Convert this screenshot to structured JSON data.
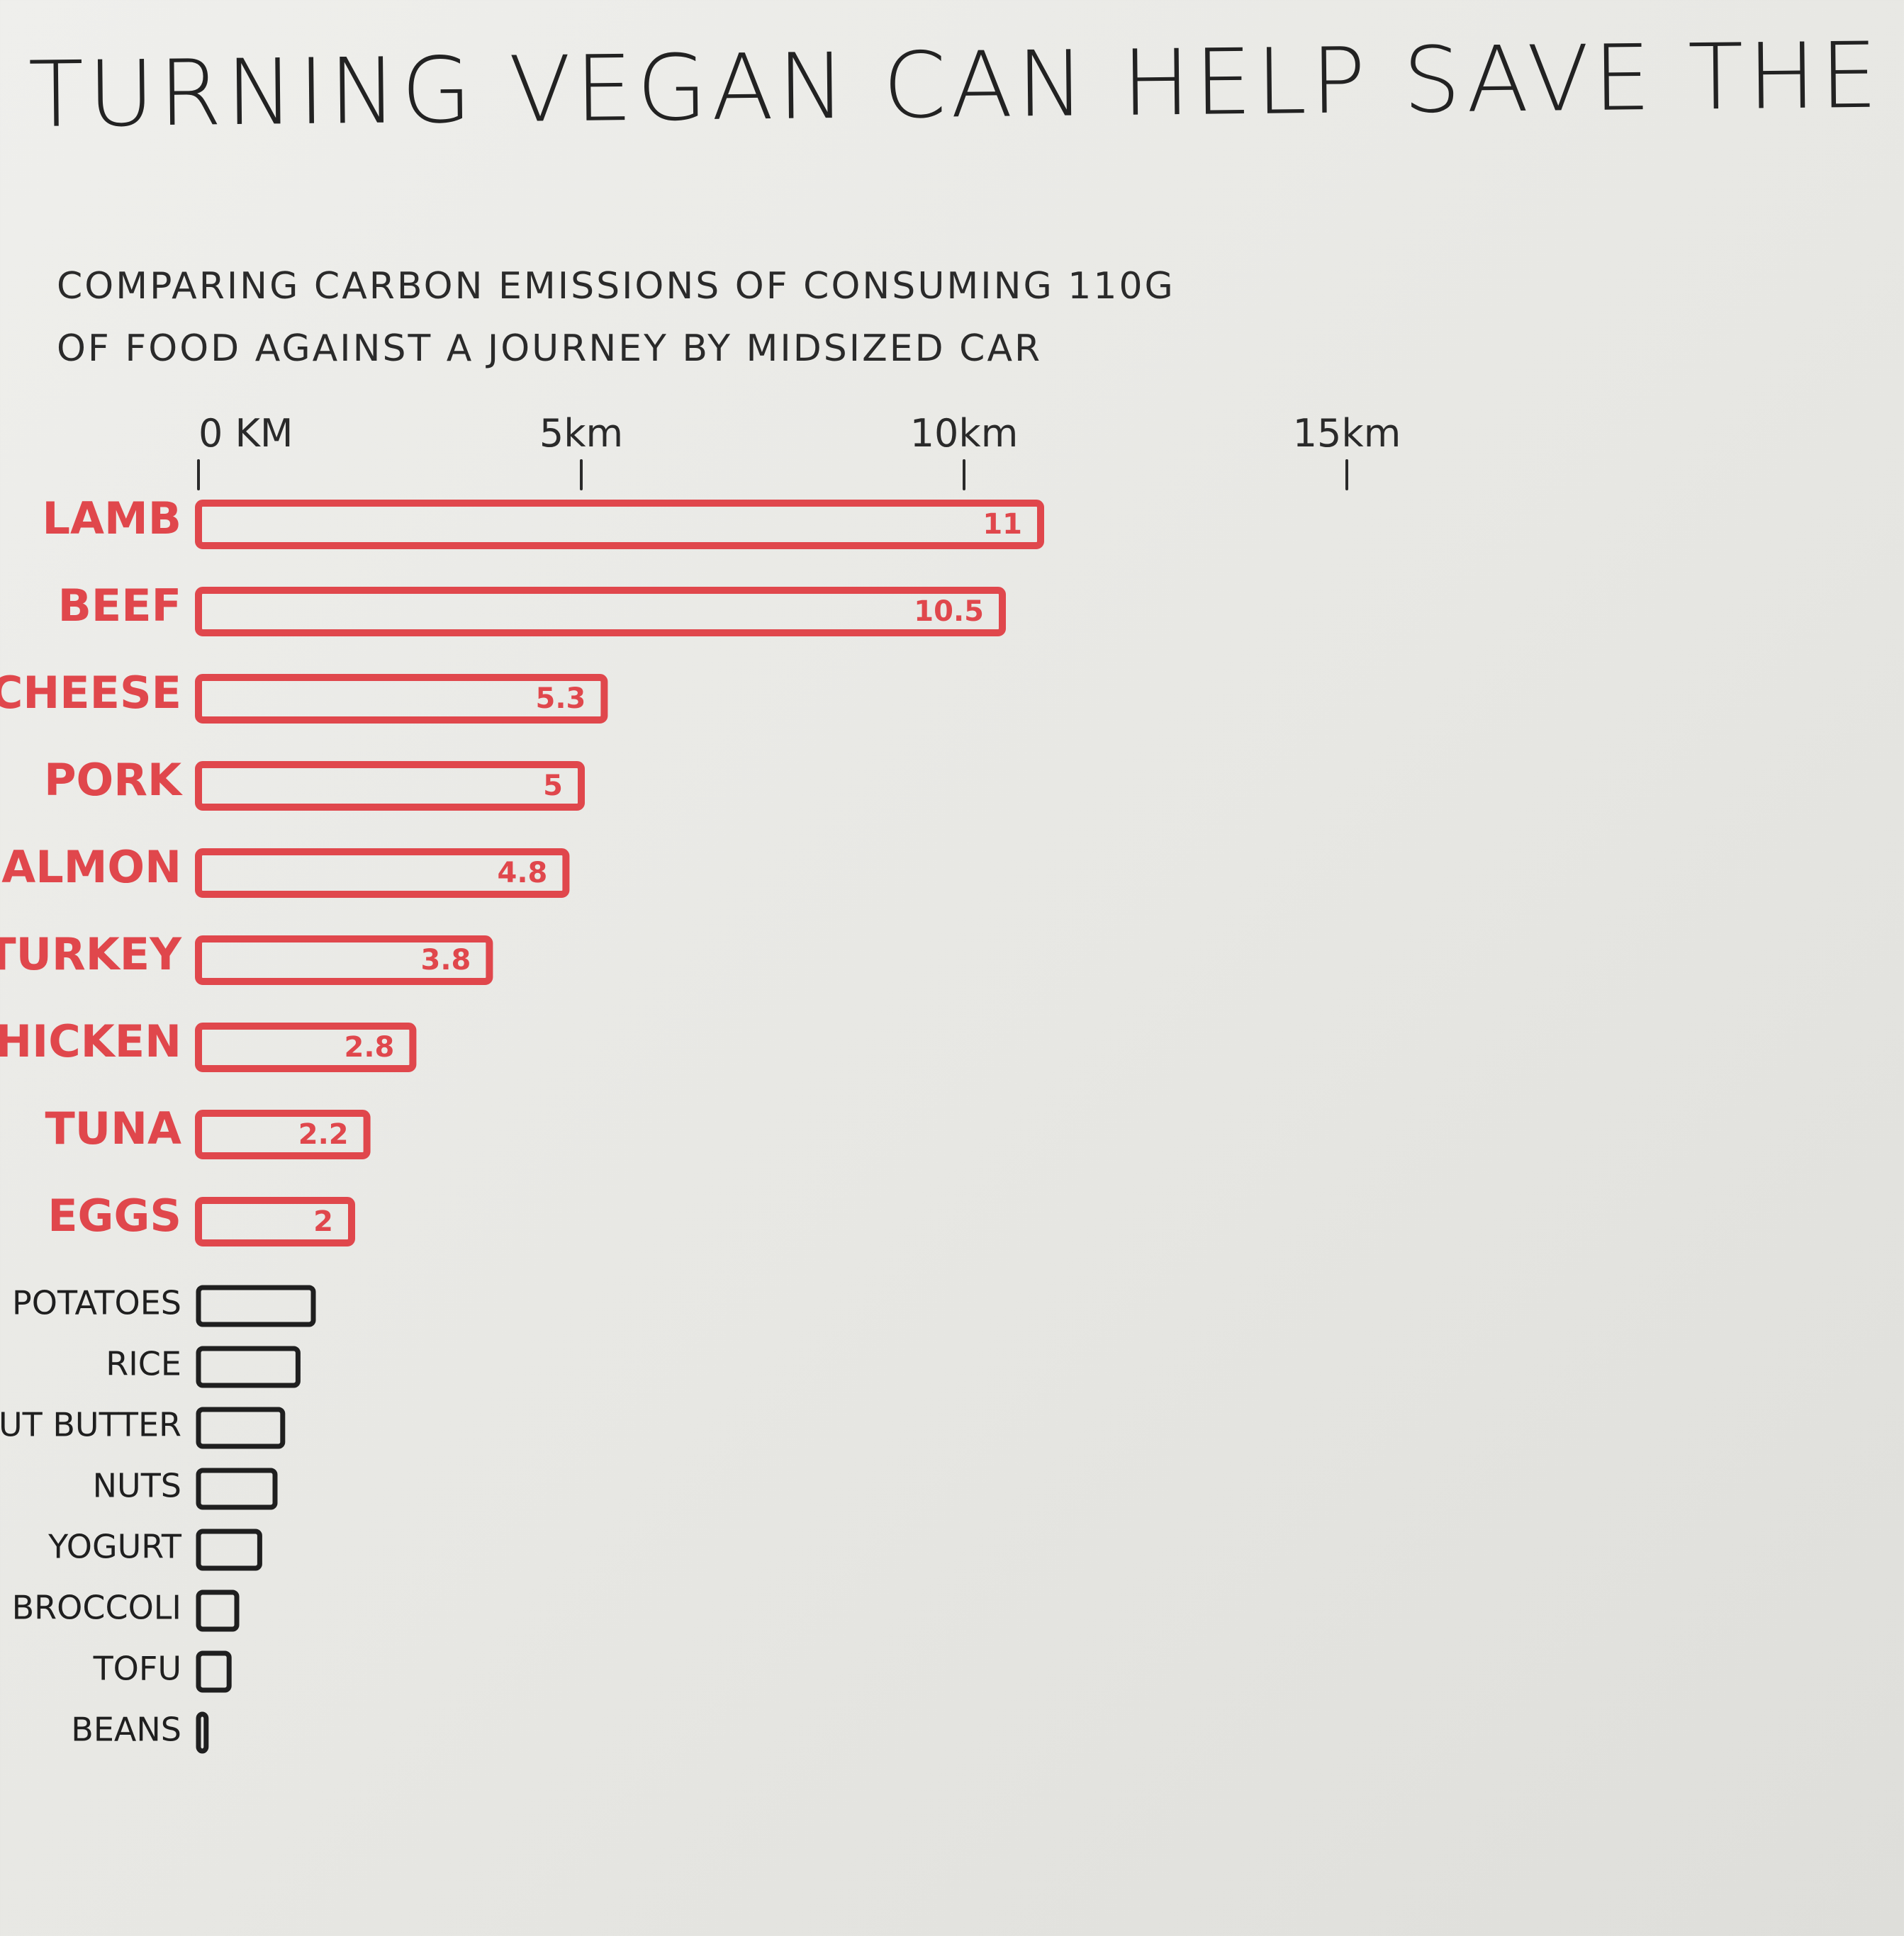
{
  "chart_data": {
    "type": "bar",
    "orientation": "horizontal",
    "title": "Turning Vegan Can Help Save The Environment",
    "subtitle": "Comparing carbon emissions of consuming 110g of food against a journey by midsized car",
    "x_ticks": [
      "0 KM",
      "5km",
      "10km",
      "15km"
    ],
    "x_tick_values": [
      0,
      5,
      10,
      15
    ],
    "xlim": [
      0,
      15
    ],
    "highlight_color": "#e0474c",
    "plain_color": "#1f1f1f",
    "categories": [
      "LAMB",
      "BEEF",
      "CHEESE",
      "PORK",
      "SALMON",
      "TURKEY",
      "CHICKEN",
      "TUNA",
      "EGGS",
      "POTATOES",
      "RICE",
      "PEANUT BUTTER",
      "NUTS",
      "YOGURT",
      "BROCCOLI",
      "TOFU",
      "BEANS"
    ],
    "values": [
      11,
      10.5,
      5.3,
      5,
      4.8,
      3.8,
      2.8,
      2.2,
      2,
      1.5,
      1.3,
      1.1,
      1.0,
      0.8,
      0.5,
      0.4,
      0.1
    ],
    "value_labels": [
      "11",
      "10.5",
      "5.3",
      "5",
      "4.8",
      "3.8",
      "2.8",
      "2.2",
      "2",
      "",
      "",
      "",
      "",
      "",
      "",
      "",
      ""
    ],
    "highlighted": [
      true,
      true,
      true,
      true,
      true,
      true,
      true,
      true,
      true,
      false,
      false,
      false,
      false,
      false,
      false,
      false,
      false
    ]
  }
}
